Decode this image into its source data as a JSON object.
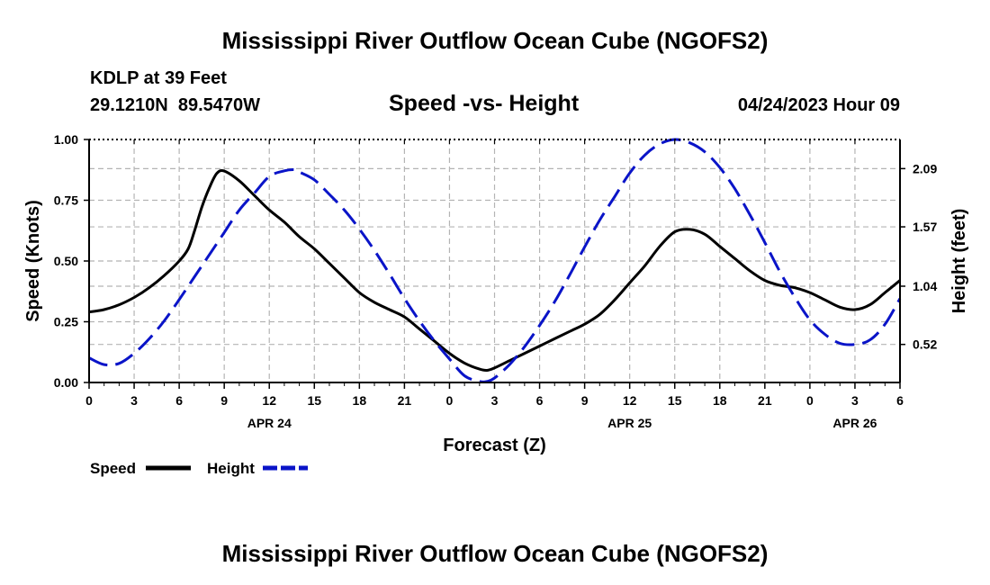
{
  "page": {
    "title": "Mississippi River Outflow Ocean Cube (NGOFS2)",
    "station": "KDLP at 39 Feet",
    "coords": "29.1210N  89.5470W",
    "subtitle": "Speed -vs- Height",
    "datetime": "04/24/2023 Hour 09",
    "bottom_title": "Mississippi River Outflow Ocean Cube (NGOFS2)"
  },
  "colors": {
    "speed": "#000000",
    "height": "#0a14c8",
    "grid": "#b4b4b4"
  },
  "chart_data": {
    "type": "line",
    "title": "Speed -vs- Height",
    "xlabel": "Forecast (Z)",
    "ylabel": "Speed (Knots)",
    "y2label": "Height (feet)",
    "xlim": [
      0,
      54
    ],
    "ylim": [
      0,
      1.0
    ],
    "y2lim": [
      0.18,
      2.35
    ],
    "x_ticks": [
      0,
      3,
      6,
      9,
      12,
      15,
      18,
      21,
      24,
      27,
      30,
      33,
      36,
      39,
      42,
      45,
      48,
      51,
      54
    ],
    "x_tick_labels": [
      "0",
      "3",
      "6",
      "9",
      "12",
      "15",
      "18",
      "21",
      "0",
      "3",
      "6",
      "9",
      "12",
      "15",
      "18",
      "21",
      "0",
      "3",
      "6"
    ],
    "date_labels": [
      {
        "x": 12,
        "label": "APR 24"
      },
      {
        "x": 36,
        "label": "APR 25"
      },
      {
        "x": 51,
        "label": "APR 26"
      }
    ],
    "y_ticks": [
      0.0,
      0.25,
      0.5,
      0.75,
      1.0
    ],
    "y_tick_labels": [
      "0.00",
      "0.25",
      "0.50",
      "0.75",
      "1.00"
    ],
    "y2_ticks": [
      0.52,
      1.04,
      1.57,
      2.09
    ],
    "y2_tick_labels": [
      "0.52",
      "1.04",
      "1.57",
      "2.09"
    ],
    "grid": true,
    "legend": {
      "placement": "bottom-left",
      "items": [
        "Speed",
        "Height"
      ]
    },
    "series": [
      {
        "name": "Speed",
        "axis": "left",
        "style": "solid",
        "x": [
          0,
          1,
          2,
          3,
          4,
          5,
          6,
          6.6,
          7,
          7.5,
          8,
          8.5,
          9,
          10,
          11,
          12,
          13,
          14,
          15,
          16,
          17,
          18,
          19,
          20,
          21,
          22,
          23,
          24,
          25,
          26,
          26.5,
          27,
          28,
          29,
          30,
          31,
          32,
          33,
          34,
          35,
          36,
          37,
          38,
          39,
          40,
          41,
          42,
          43,
          44,
          45,
          46,
          47,
          48,
          49,
          50,
          51,
          52,
          53,
          54
        ],
        "values": [
          0.29,
          0.3,
          0.32,
          0.35,
          0.39,
          0.44,
          0.5,
          0.55,
          0.62,
          0.72,
          0.8,
          0.86,
          0.87,
          0.83,
          0.77,
          0.71,
          0.66,
          0.6,
          0.55,
          0.49,
          0.43,
          0.37,
          0.33,
          0.3,
          0.27,
          0.22,
          0.17,
          0.12,
          0.08,
          0.055,
          0.05,
          0.06,
          0.09,
          0.12,
          0.15,
          0.18,
          0.21,
          0.24,
          0.28,
          0.34,
          0.41,
          0.48,
          0.56,
          0.62,
          0.63,
          0.61,
          0.56,
          0.51,
          0.46,
          0.42,
          0.4,
          0.39,
          0.37,
          0.34,
          0.31,
          0.3,
          0.32,
          0.37,
          0.42
        ]
      },
      {
        "name": "Height",
        "axis": "right",
        "style": "dashed",
        "x": [
          0,
          1,
          2,
          3,
          4,
          5,
          6,
          7,
          8,
          9,
          10,
          11,
          12,
          13,
          13.7,
          14,
          15,
          16,
          17,
          18,
          19,
          20,
          21,
          22,
          23,
          24,
          25,
          26,
          26.5,
          27,
          28,
          29,
          30,
          31,
          32,
          33,
          34,
          35,
          36,
          37,
          38,
          39,
          40,
          41,
          42,
          43,
          44,
          45,
          46,
          47,
          48,
          49,
          50,
          51,
          52,
          53,
          54
        ],
        "values": [
          0.4,
          0.34,
          0.35,
          0.44,
          0.57,
          0.73,
          0.92,
          1.12,
          1.32,
          1.52,
          1.72,
          1.87,
          2.02,
          2.07,
          2.08,
          2.06,
          1.99,
          1.86,
          1.72,
          1.55,
          1.36,
          1.15,
          0.93,
          0.73,
          0.55,
          0.39,
          0.24,
          0.19,
          0.19,
          0.22,
          0.34,
          0.5,
          0.69,
          0.9,
          1.14,
          1.39,
          1.63,
          1.84,
          2.05,
          2.21,
          2.31,
          2.35,
          2.32,
          2.24,
          2.1,
          1.91,
          1.68,
          1.43,
          1.17,
          0.94,
          0.74,
          0.61,
          0.53,
          0.52,
          0.56,
          0.7,
          0.93
        ]
      }
    ]
  }
}
